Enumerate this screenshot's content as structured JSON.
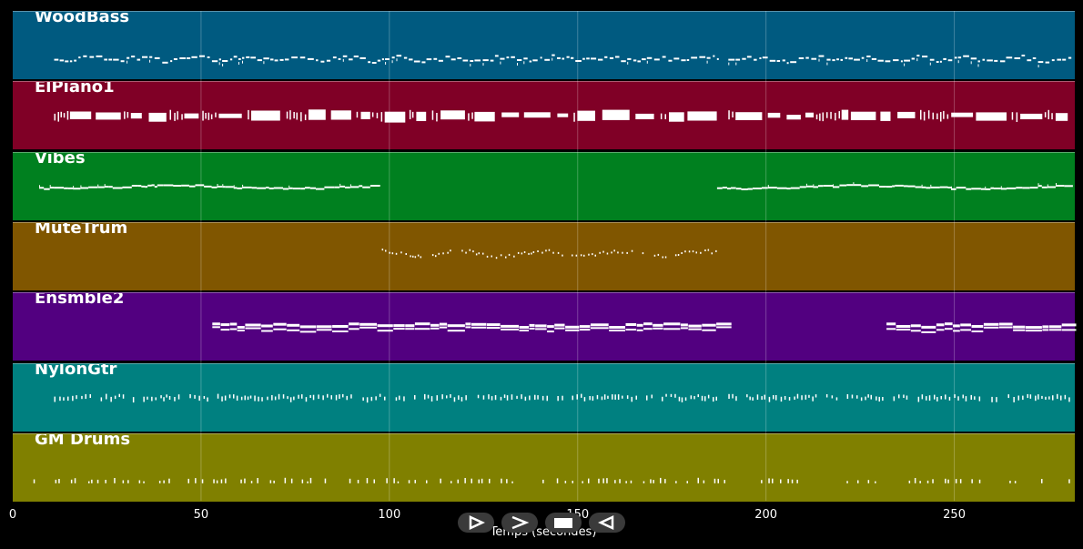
{
  "tracks": [
    {
      "name": "WoodBass",
      "color": "#005A80",
      "pattern": "bass",
      "segments": [
        [
          11,
          187
        ],
        [
          190,
          281
        ]
      ]
    },
    {
      "name": "ElPiano1",
      "color": "#800026",
      "pattern": "piano",
      "segments": [
        [
          11,
          187
        ],
        [
          190,
          281
        ]
      ]
    },
    {
      "name": "Vibes",
      "color": "#00801F",
      "pattern": "line",
      "segments": [
        [
          7,
          97
        ],
        [
          187,
          281
        ]
      ]
    },
    {
      "name": "MuteTrum",
      "color": "#805600",
      "pattern": "wave",
      "segments": [
        [
          98,
          187
        ]
      ]
    },
    {
      "name": "Ensmble2",
      "color": "#520080",
      "pattern": "block",
      "segments": [
        [
          53,
          187
        ],
        [
          232,
          281
        ]
      ]
    },
    {
      "name": "NylonGtr",
      "color": "#008080",
      "pattern": "dots",
      "segments": [
        [
          11,
          187
        ],
        [
          190,
          281
        ]
      ]
    },
    {
      "name": "GM Drums",
      "color": "#808000",
      "pattern": "drums",
      "segments": [
        [
          2,
          281
        ]
      ]
    }
  ],
  "x_axis": {
    "label": "Temps (secondes)",
    "min": 0,
    "max": 282,
    "ticks": [
      {
        "value": 0,
        "label": "0"
      },
      {
        "value": 50,
        "label": "50"
      },
      {
        "value": 100,
        "label": "100"
      },
      {
        "value": 150,
        "label": "150"
      },
      {
        "value": 200,
        "label": "200"
      },
      {
        "value": 250,
        "label": "250"
      }
    ]
  },
  "controls": [
    {
      "name": "play-button",
      "icon": "play-icon"
    },
    {
      "name": "forward-button",
      "icon": "forward-icon"
    },
    {
      "name": "stop-button",
      "icon": "stop-icon"
    },
    {
      "name": "rewind-button",
      "icon": "rewind-icon"
    }
  ]
}
